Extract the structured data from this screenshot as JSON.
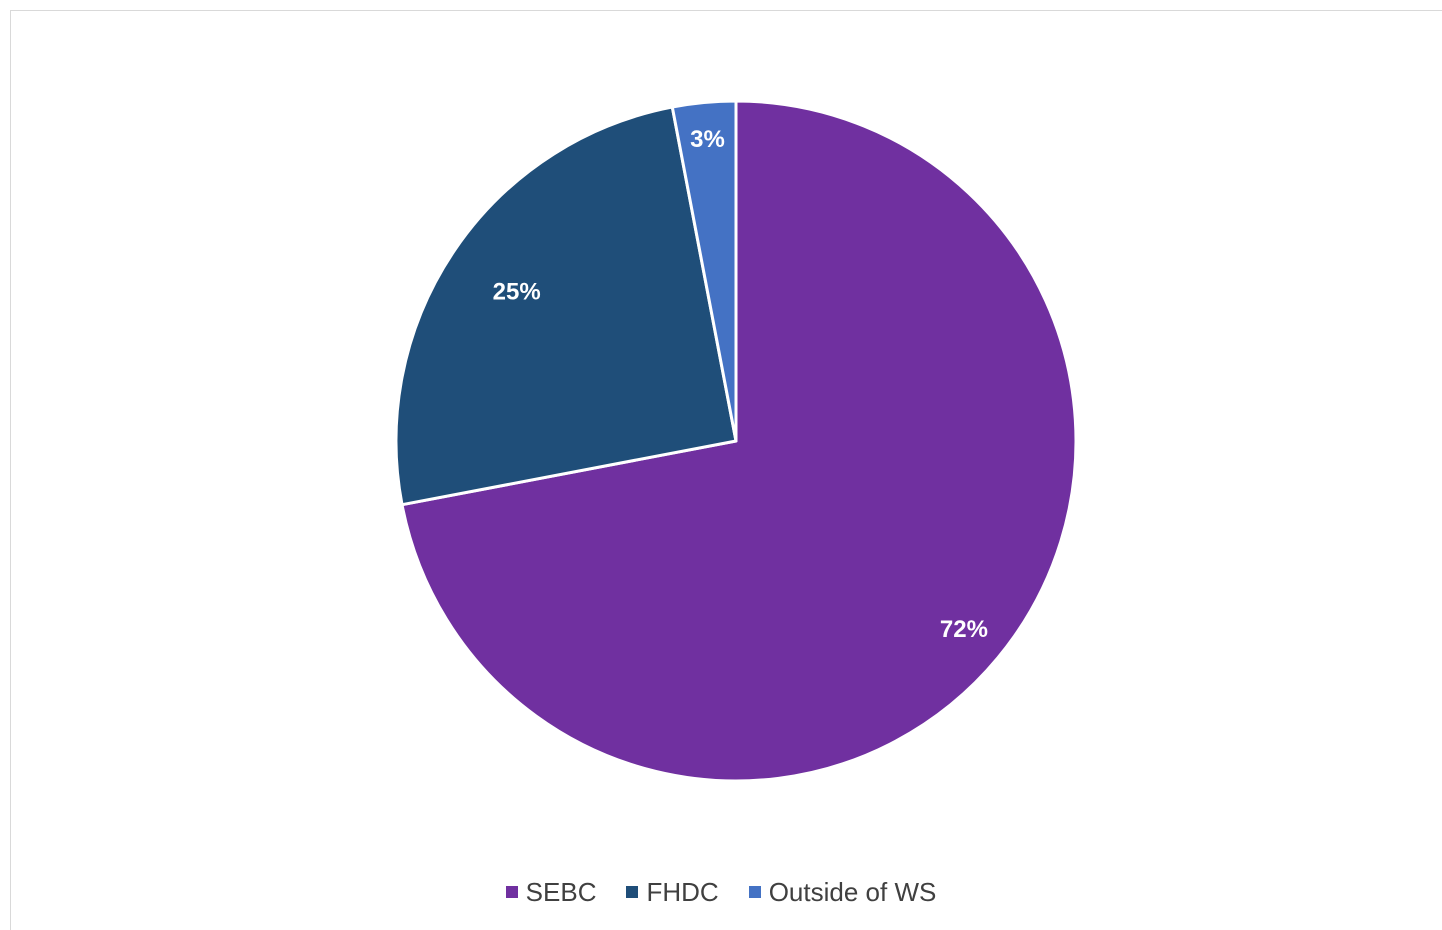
{
  "chart_data": {
    "type": "pie",
    "title": "",
    "categories": [
      "SEBC",
      "FHDC",
      "Outside of WS"
    ],
    "values": [
      72,
      25,
      3
    ],
    "value_labels": [
      "72%",
      "25%",
      "3%"
    ],
    "colors": [
      "#7030a0",
      "#1f4e79",
      "#4472c4"
    ],
    "legend_position": "bottom",
    "start_angle": "12 o'clock, clockwise"
  }
}
